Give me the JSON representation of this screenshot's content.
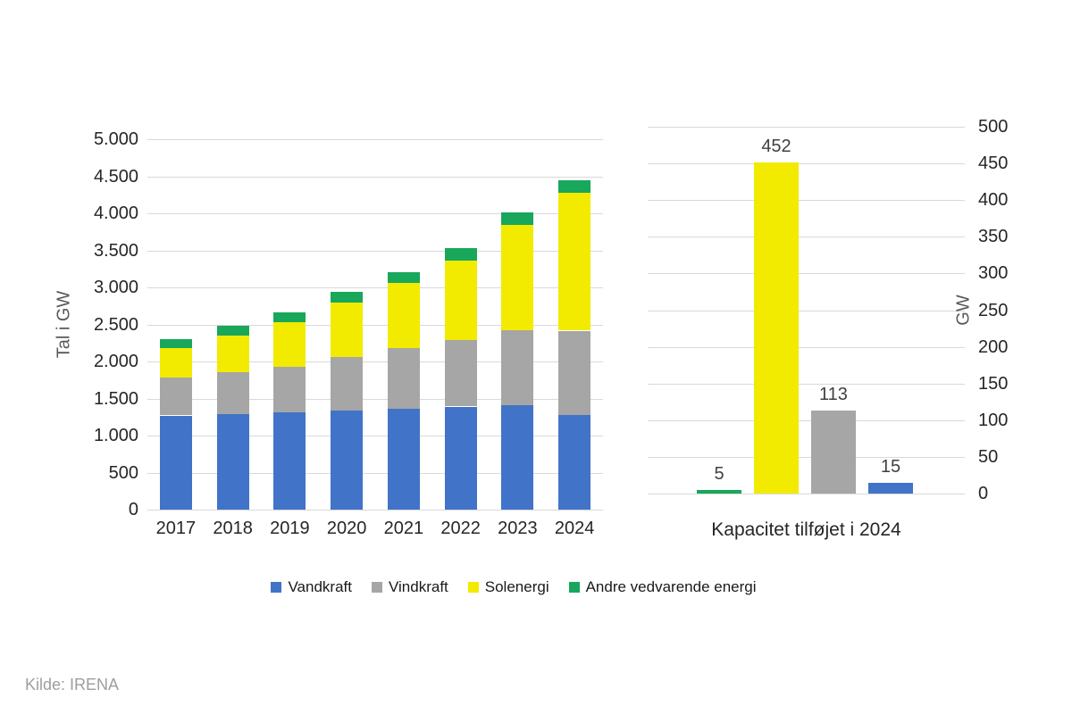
{
  "source_note": "Kilde: IRENA",
  "colors": {
    "vandkraft": "#4173C8",
    "vindkraft": "#A6A6A6",
    "solenergi": "#F2EB00",
    "andre": "#18A75B",
    "gridline": "#D9D9D9"
  },
  "legend": {
    "items": [
      {
        "label": "Vandkraft",
        "color": "#4173C8"
      },
      {
        "label": "Vindkraft",
        "color": "#A6A6A6"
      },
      {
        "label": "Solenergi",
        "color": "#F2EB00"
      },
      {
        "label": "Andre vedvarende energi",
        "color": "#18A75B"
      }
    ]
  },
  "chart_data": [
    {
      "type": "bar",
      "stacked": true,
      "title": "",
      "ylabel": "Tal i GW",
      "categories": [
        "2017",
        "2018",
        "2019",
        "2020",
        "2021",
        "2022",
        "2023",
        "2024"
      ],
      "series": [
        {
          "name": "Vandkraft",
          "color": "#4173C8",
          "values": [
            1270,
            1293,
            1310,
            1333,
            1360,
            1392,
            1407,
            1283
          ]
        },
        {
          "name": "Vindkraft",
          "color": "#A6A6A6",
          "values": [
            515,
            564,
            622,
            732,
            824,
            901,
            1017,
            1133
          ]
        },
        {
          "name": "Solenergi",
          "color": "#F2EB00",
          "values": [
            396,
            492,
            594,
            728,
            873,
            1073,
            1419,
            1865
          ]
        },
        {
          "name": "Andre vedvarende energi",
          "color": "#18A75B",
          "values": [
            124,
            130,
            139,
            145,
            154,
            159,
            165,
            167
          ]
        }
      ],
      "ylim": [
        0,
        5000
      ],
      "ytick_step": 500,
      "ytick_labels": [
        "0",
        "500",
        "1.000",
        "1.500",
        "2.000",
        "2.500",
        "3.000",
        "3.500",
        "4.000",
        "4.500",
        "5.000"
      ],
      "grid": true,
      "axis_side": "left",
      "legend_position": "bottom"
    },
    {
      "type": "bar",
      "stacked": false,
      "title": "Kapacitet tilføjet i 2024",
      "ylabel": "GW",
      "categories": [
        "Andre vedvarende energi",
        "Solenergi",
        "Vindkraft",
        "Vandkraft"
      ],
      "values": [
        5,
        452,
        113,
        15
      ],
      "data_labels": [
        "5",
        "452",
        "113",
        "15"
      ],
      "bar_colors": [
        "#18A75B",
        "#F2EB00",
        "#A6A6A6",
        "#4173C8"
      ],
      "ylim": [
        0,
        500
      ],
      "ytick_step": 50,
      "ytick_labels": [
        "0",
        "50",
        "100",
        "150",
        "200",
        "250",
        "300",
        "350",
        "400",
        "450",
        "500"
      ],
      "grid": true,
      "axis_side": "right"
    }
  ]
}
